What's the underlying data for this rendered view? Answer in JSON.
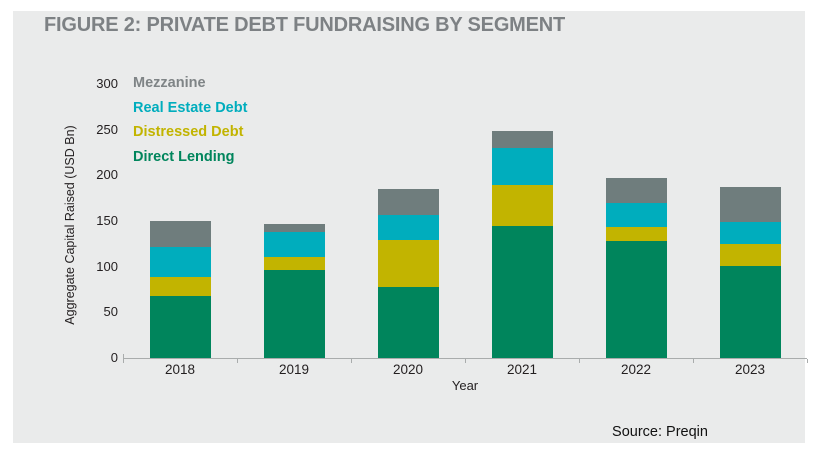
{
  "page": {
    "title": "FIGURE 2: PRIVATE DEBT FUNDRAISING BY SEGMENT",
    "source": "Source: Preqin",
    "panel_background": "#eaebeb",
    "title_color": "#7d8184",
    "axis_color": "#a9acac",
    "text_color": "#231f20"
  },
  "legend": {
    "items": [
      {
        "label": "Mezzanine",
        "color": "#7f8486"
      },
      {
        "label": "Real Estate Debt",
        "color": "#00adbd"
      },
      {
        "label": "Distressed Debt",
        "color": "#c2b400"
      },
      {
        "label": "Direct Lending",
        "color": "#00855c"
      }
    ]
  },
  "chart_data": {
    "type": "bar",
    "stacked": true,
    "title": "FIGURE 2: PRIVATE DEBT FUNDRAISING BY SEGMENT",
    "categories": [
      "2018",
      "2019",
      "2020",
      "2021",
      "2022",
      "2023"
    ],
    "xlabel": "Year",
    "ylabel": "Aggregate Capital Raised (USD Bn)",
    "ylim": [
      0,
      300
    ],
    "yticks": [
      0,
      50,
      100,
      150,
      200,
      250,
      300
    ],
    "grid": false,
    "legend_position": "top-left text-only labels, no swatches",
    "series": [
      {
        "name": "Direct Lending",
        "color": "#00855c",
        "values": [
          68,
          96,
          78,
          144,
          128,
          101
        ]
      },
      {
        "name": "Distressed Debt",
        "color": "#c2b400",
        "values": [
          21,
          15,
          51,
          45,
          15,
          24
        ]
      },
      {
        "name": "Real Estate Debt",
        "color": "#00adbd",
        "values": [
          32,
          27,
          28,
          41,
          27,
          24
        ]
      },
      {
        "name": "Mezzanine",
        "color": "#6f7d7d",
        "values": [
          29,
          9,
          28,
          18,
          27,
          38
        ]
      }
    ],
    "totals_usd_bn": [
      150,
      147,
      185,
      248,
      197,
      187
    ],
    "source": "Source: Preqin"
  }
}
